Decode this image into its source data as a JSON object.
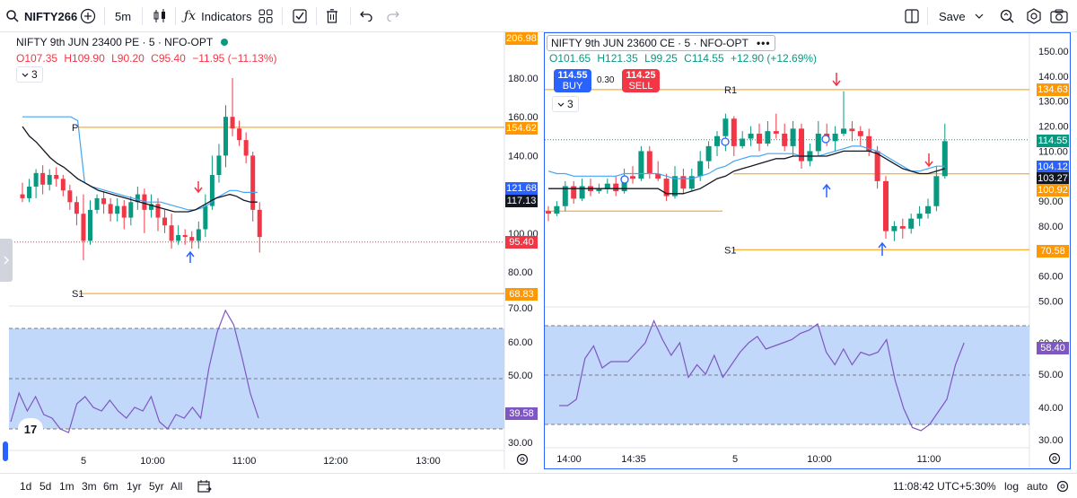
{
  "toolbar": {
    "symbol": "NIFTY266",
    "interval": "5m",
    "indicators_label": "Indicators",
    "save_label": "Save"
  },
  "left_chart": {
    "title": "NIFTY 9th JUN 23400 PE · 5 · NFO-OPT",
    "open": "O107.35",
    "high": "H109.90",
    "low": "L90.20",
    "close": "C95.40",
    "change": "−11.95 (−11.13%)",
    "indicator_count": "3",
    "price_labels": [
      "180.00",
      "160.00",
      "140.00",
      "100.00",
      "80.00"
    ],
    "rsi_labels": [
      "70.00",
      "60.00",
      "50.00",
      "30.00"
    ],
    "time_labels": [
      "5",
      "10:00",
      "11:00",
      "12:00",
      "13:00"
    ],
    "tags": {
      "top": "206.98",
      "pivot": "154.62",
      "blue": "121.68",
      "black": "117.13",
      "last": "95.40",
      "s1": "68.83",
      "rsi": "39.58"
    },
    "level_labels": {
      "p": "P",
      "s1": "S1"
    },
    "colors": {
      "up": "#089981",
      "down": "#f23645",
      "orange": "#ff9800",
      "blue": "#2962ff",
      "sma": "#42a5f5",
      "rsi": "#7e57c2"
    }
  },
  "right_chart": {
    "title": "NIFTY 9th JUN 23600 CE · 5 · NFO-OPT",
    "open": "O101.65",
    "high": "H121.35",
    "low": "L99.25",
    "close": "C114.55",
    "change": "+12.90 (+12.69%)",
    "buy_price": "114.55",
    "buy_label": "BUY",
    "spread": "0.30",
    "sell_price": "114.25",
    "sell_label": "SELL",
    "indicator_count": "3",
    "price_labels": [
      "150.00",
      "140.00",
      "130.00",
      "120.00",
      "110.00",
      "90.00",
      "80.00",
      "60.00",
      "50.00"
    ],
    "rsi_labels": [
      "60.00",
      "50.00",
      "40.00",
      "30.00"
    ],
    "time_labels": [
      "14:00",
      "14:35",
      "5",
      "10:00",
      "11:00"
    ],
    "tags": {
      "r1": "134.63",
      "last": "114.55",
      "blue": "104.12",
      "black": "103.27",
      "orange": "100.92",
      "s1": "70.58",
      "rsi": "58.40"
    },
    "level_labels": {
      "r1": "R1",
      "s1": "S1"
    }
  },
  "bottombar": {
    "ranges": [
      "1d",
      "5d",
      "1m",
      "3m",
      "6m",
      "1yr",
      "5yr",
      "All"
    ],
    "clock": "11:08:42 UTC+5:30",
    "percent": "%",
    "log": "log",
    "auto": "auto"
  }
}
